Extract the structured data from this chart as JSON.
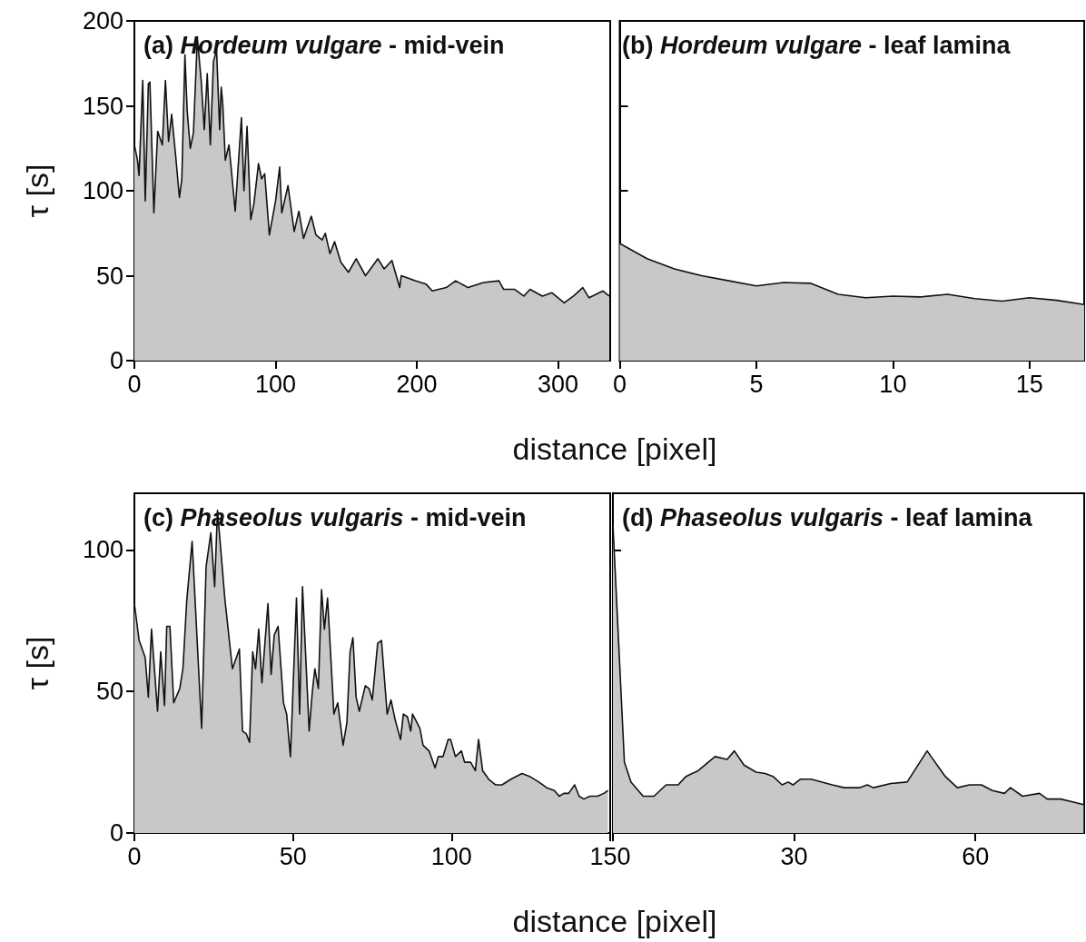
{
  "chart_data": [
    {
      "type": "area",
      "title": "(a) Hordeum vulgare - mid-vein",
      "xlabel": "distance [pixel]",
      "ylabel": "τ [s]",
      "color": "#c8c8c8",
      "marker": "none",
      "x": [
        0,
        2.2,
        3.3,
        5.9,
        7.7,
        9.9,
        11,
        13.8,
        16.5,
        19.8,
        22,
        24.2,
        26.4,
        29.2,
        31.9,
        33.6,
        35.8,
        37.4,
        39.6,
        41.8,
        44.6,
        47.3,
        49.5,
        51.6,
        53.8,
        56,
        58.2,
        60.4,
        61.5,
        62.6,
        64.4,
        67,
        71.4,
        75.8,
        77.6,
        79.8,
        82.4,
        84.6,
        87.9,
        90.1,
        92.3,
        95.6,
        100,
        102.9,
        104.4,
        108.8,
        113.2,
        116.5,
        119.8,
        125.3,
        128.6,
        133,
        135.2,
        138.5,
        141.8,
        146.2,
        151.6,
        157.1,
        163.7,
        172.5,
        176.9,
        182.4,
        187.9,
        189,
        198.9,
        206.6,
        211,
        220.9,
        227.5,
        236.3,
        247.3,
        258.2,
        261.5,
        269.2,
        275.8,
        280.2,
        289,
        295.6,
        304.4,
        311,
        317.6,
        322,
        331.9,
        336.3
      ],
      "values": [
        127,
        118,
        109,
        165,
        94,
        163,
        164,
        87,
        135,
        127,
        165,
        129,
        145,
        121,
        96,
        107,
        180,
        147,
        125,
        134,
        190,
        165,
        136,
        169,
        127,
        176,
        183,
        136,
        161,
        151,
        118,
        127,
        88,
        143,
        100,
        138,
        83,
        92,
        116,
        107,
        110,
        74,
        94,
        114,
        87,
        103,
        76,
        88,
        72,
        85,
        74,
        71,
        75,
        63,
        70,
        58,
        52,
        60,
        50,
        60,
        54,
        59,
        43,
        50,
        47,
        45,
        41,
        43,
        47,
        43,
        46,
        47,
        42,
        42,
        38,
        42,
        38,
        40,
        34,
        38,
        43,
        37,
        41,
        38
      ],
      "xlim": [
        0,
        337
      ],
      "ylim": [
        0,
        200
      ],
      "xticks": [
        0,
        100,
        200,
        300
      ],
      "yticks": [
        0,
        50,
        100,
        150,
        200
      ]
    },
    {
      "type": "area",
      "title": "(b) Hordeum vulgare - leaf lamina",
      "color": "#c8c8c8",
      "marker": "none",
      "tick_labels": "x",
      "x": [
        0,
        1,
        2,
        3,
        4,
        5,
        6,
        7,
        8,
        9,
        10,
        11,
        12,
        13,
        14,
        15,
        16,
        17
      ],
      "values": [
        69,
        60,
        54,
        50,
        47,
        44,
        46,
        45.5,
        39,
        37,
        38,
        37.5,
        39,
        36.5,
        35,
        37,
        35.5,
        33
      ],
      "xlim": [
        0,
        17
      ],
      "ylim": [
        0,
        200
      ],
      "xticks": [
        0,
        5,
        10,
        15
      ],
      "yticks": [
        0,
        50,
        100,
        150,
        200
      ]
    },
    {
      "type": "area",
      "title": "(c) Phaseolus vulgaris - mid-vein",
      "xlabel": "distance [pixel]",
      "ylabel": "τ [s]",
      "color": "#c8c8c8",
      "marker": "none",
      "x": [
        0,
        1.5,
        3.4,
        4.4,
        5.4,
        7.3,
        8.3,
        9.5,
        10.2,
        11.2,
        12.4,
        14.3,
        15.3,
        16.5,
        18.2,
        21.2,
        22.6,
        24.1,
        25.3,
        26.2,
        28.5,
        30.9,
        33.1,
        34.1,
        35.3,
        36.3,
        37.3,
        38.2,
        39.2,
        40.2,
        42.1,
        43.1,
        44.1,
        45.3,
        47,
        48,
        49.2,
        51.1,
        52.1,
        53,
        55.1,
        56.1,
        56.9,
        58,
        59,
        59.9,
        60.9,
        62.9,
        64.1,
        65.8,
        67,
        68,
        68.9,
        69.9,
        70.9,
        72.8,
        74,
        75,
        76.7,
        77.9,
        79.7,
        80.9,
        82.2,
        83.9,
        84.8,
        86.1,
        87.1,
        87.7,
        90,
        91,
        92.9,
        94.8,
        95.8,
        97.3,
        98.9,
        99.7,
        101.2,
        103.1,
        104.1,
        106,
        107.5,
        108.5,
        109.8,
        111.7,
        113.9,
        115.9,
        118.7,
        122.2,
        124.6,
        127.5,
        130,
        132.4,
        133.9,
        135.4,
        136.9,
        138.8,
        140.2,
        141.7,
        143.6,
        146,
        148,
        149.3
      ],
      "values": [
        81,
        68,
        62,
        48,
        72,
        43,
        64,
        45,
        73,
        73,
        46,
        51,
        58,
        82,
        103,
        37,
        94,
        106,
        87,
        114,
        83,
        58,
        65,
        36,
        35,
        32,
        64,
        58,
        72,
        53,
        81,
        56,
        70,
        73,
        46,
        42,
        27,
        83,
        42,
        87,
        36,
        50,
        58,
        51,
        86,
        72,
        83,
        42,
        46,
        31,
        39,
        64,
        69,
        48,
        43,
        52,
        51,
        47,
        67,
        68,
        42,
        47,
        40,
        33,
        42,
        41,
        36,
        42,
        37,
        31,
        29,
        23,
        27,
        27,
        33,
        33,
        27,
        29,
        25,
        25,
        22,
        33,
        22,
        19,
        17,
        17,
        19,
        21,
        20,
        18,
        16,
        15,
        13,
        14,
        14,
        17,
        13,
        12,
        13,
        13,
        14,
        15
      ],
      "xlim": [
        0,
        150
      ],
      "ylim": [
        0,
        120
      ],
      "xticks": [
        0,
        50,
        100,
        150
      ],
      "yticks": [
        0,
        50,
        100
      ]
    },
    {
      "type": "area",
      "title": "(d) Phaseolus vulgaris - leaf lamina",
      "color": "#c8c8c8",
      "marker": "none",
      "tick_labels": "x",
      "x": [
        0,
        1,
        1.9,
        3,
        5,
        6.8,
        8.8,
        10.8,
        12.1,
        14.1,
        16.9,
        18.9,
        20.1,
        21.7,
        23.7,
        25.2,
        26.5,
        28,
        29,
        29.8,
        31,
        32.8,
        36.3,
        38.3,
        40.8,
        42.1,
        43.1,
        46,
        48.7,
        51.4,
        52,
        55,
        57,
        59,
        61,
        62.8,
        64.8,
        65.8,
        67.8,
        70.6,
        71.9,
        74.1,
        76.1,
        77.9
      ],
      "values": [
        109,
        65,
        25,
        18,
        13,
        13,
        17,
        17,
        20,
        22,
        27,
        26,
        29,
        24,
        21.5,
        21,
        20,
        17,
        18,
        17,
        19,
        19,
        17,
        16,
        16,
        17,
        16,
        17.5,
        18,
        27,
        29,
        20,
        16,
        17,
        17,
        15,
        14,
        16,
        13,
        14,
        12,
        12,
        11,
        10
      ],
      "xlim": [
        0,
        78
      ],
      "ylim": [
        0,
        120
      ],
      "xticks": [
        {
          "value": 0,
          "label": null
        },
        30,
        60
      ],
      "yticks": [
        0,
        50,
        100
      ]
    }
  ]
}
